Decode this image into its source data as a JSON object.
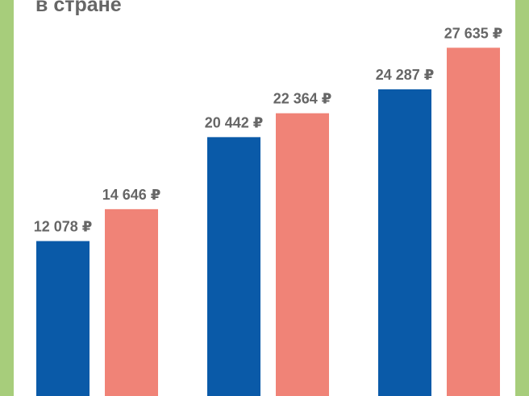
{
  "title_fragment": "в стране",
  "colors": {
    "frame": "#a7cd7b",
    "series_a": "#0a5aa8",
    "series_b": "#f08377",
    "label": "#666666"
  },
  "chart_data": {
    "type": "bar",
    "categories": [
      "",
      "",
      ""
    ],
    "series": [
      {
        "values": [
          12078,
          20442,
          24287
        ],
        "labels": [
          "12 078 ₽",
          "20 442 ₽",
          "24 287 ₽"
        ]
      },
      {
        "values": [
          14646,
          22364,
          27635
        ],
        "labels": [
          "14 646 ₽",
          "22 364 ₽",
          "27 635 ₽"
        ]
      }
    ],
    "ylim": [
      0,
      30000
    ],
    "grid": false,
    "legend": "none"
  }
}
